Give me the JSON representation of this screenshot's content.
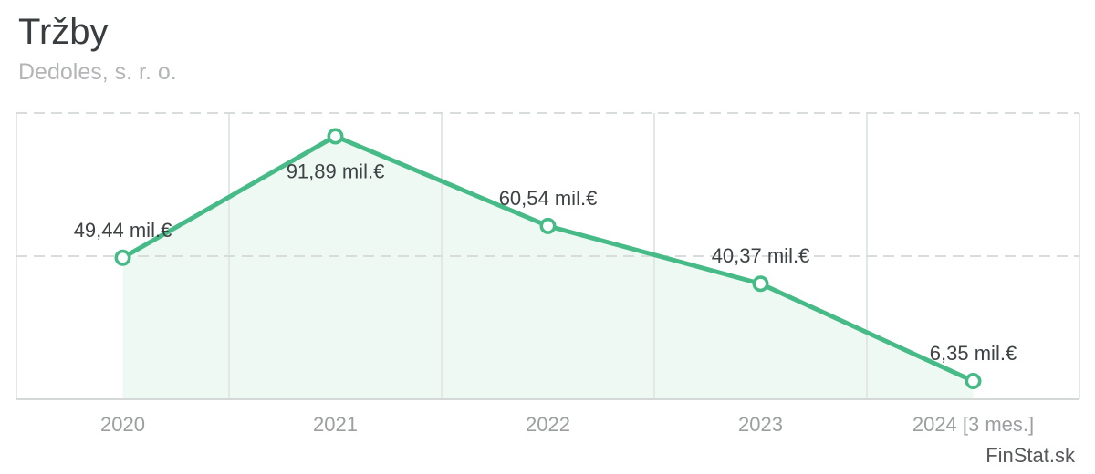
{
  "header": {
    "title": "Tržby",
    "subtitle": "Dedoles, s. r. o."
  },
  "watermark": {
    "text": "FinStat.sk"
  },
  "chart_data": {
    "type": "line",
    "title": "Tržby",
    "subtitle": "Dedoles, s. r. o.",
    "categories": [
      "2020",
      "2021",
      "2022",
      "2023",
      "2024 [3 mes.]"
    ],
    "values": [
      49.44,
      91.89,
      60.54,
      40.37,
      6.35
    ],
    "point_labels": [
      "49,44 mil.€",
      "91,89 mil.€",
      "60,54 mil.€",
      "40,37 mil.€",
      "6,35 mil.€"
    ],
    "label_positions": [
      "above",
      "below",
      "above",
      "above",
      "above"
    ],
    "unit": "mil.€",
    "xlabel": "",
    "ylabel": "",
    "ylim": [
      0,
      100
    ],
    "yticks": [
      0,
      50,
      100
    ],
    "grid": true,
    "legend": false,
    "area_fill_to_last_point": true,
    "colors": {
      "line": "#47bb87",
      "marker_fill": "#ffffff",
      "area_fill": "rgba(71,187,135,0.09)",
      "grid_vertical": "#e3e7e6",
      "grid_horizontal_dashed": "#d8dcdc",
      "axis_bottom": "#d4d8d8",
      "value_label": "#3e4244",
      "category_label": "#9c9fa0"
    }
  }
}
